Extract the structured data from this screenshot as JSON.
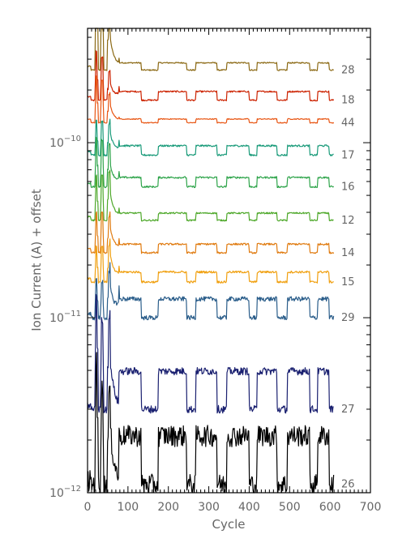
{
  "chart_data": {
    "type": "line",
    "title": "",
    "xlabel": "Cycle",
    "ylabel": "Ion Current (A) + offset",
    "xlim": [
      0,
      700
    ],
    "x_ticks": [
      "0",
      "100",
      "200",
      "300",
      "400",
      "500",
      "600",
      "700"
    ],
    "y_scale": "log",
    "ylim": [
      1e-12,
      4.5e-10
    ],
    "y_ticks": [
      {
        "value": 1e-12,
        "label": "10",
        "exp": "−12"
      },
      {
        "value": 1e-11,
        "label": "10",
        "exp": "−11"
      },
      {
        "value": 1e-10,
        "label": "10",
        "exp": "−10"
      }
    ],
    "grid": false,
    "plateaus": [
      [
        78,
        132
      ],
      [
        175,
        245
      ],
      [
        268,
        320
      ],
      [
        345,
        400
      ],
      [
        420,
        468
      ],
      [
        495,
        550
      ],
      [
        570,
        598
      ]
    ],
    "series": [
      {
        "name": "28",
        "color": "#8B6914",
        "baseline": 2.6e-10,
        "amp": 0.1,
        "spikes": [
          3.3,
          2.8,
          2.4
        ],
        "decay_peak": 1.6,
        "noise": 0.008
      },
      {
        "name": "18",
        "color": "#CC2200",
        "baseline": 1.75e-10,
        "amp": 0.12,
        "spikes": [
          1.9,
          1.75,
          1.45
        ],
        "decay_peak": 1.3,
        "noise": 0.01
      },
      {
        "name": "44",
        "color": "#E85512",
        "baseline": 1.3e-10,
        "amp": 0.05,
        "spikes": [
          1.85,
          1.75,
          1.45
        ],
        "decay_peak": 1.3,
        "noise": 0.006
      },
      {
        "name": "17",
        "color": "#1A9B7A",
        "baseline": 8.5e-11,
        "amp": 0.13,
        "spikes": [
          1.6,
          1.55,
          1.5
        ],
        "decay_peak": 1.4,
        "noise": 0.012
      },
      {
        "name": "16",
        "color": "#2EA44A",
        "baseline": 5.6e-11,
        "amp": 0.13,
        "spikes": [
          1.9,
          1.85,
          1.75
        ],
        "decay_peak": 1.4,
        "noise": 0.012
      },
      {
        "name": "12",
        "color": "#4EA82A",
        "baseline": 3.6e-11,
        "amp": 0.1,
        "spikes": [
          1.8,
          1.8,
          1.9
        ],
        "decay_peak": 1.5,
        "noise": 0.01
      },
      {
        "name": "14",
        "color": "#E07B10",
        "baseline": 2.35e-11,
        "amp": 0.12,
        "spikes": [
          1.7,
          1.7,
          1.6
        ],
        "decay_peak": 1.45,
        "noise": 0.012
      },
      {
        "name": "15",
        "color": "#F0A010",
        "baseline": 1.6e-11,
        "amp": 0.14,
        "spikes": [
          1.6,
          1.6,
          1.6
        ],
        "decay_peak": 1.5,
        "noise": 0.014
      },
      {
        "name": "29",
        "color": "#2A5D8A",
        "baseline": 1e-11,
        "amp": 0.28,
        "spikes": [
          1.7,
          1.6,
          1.8
        ],
        "decay_peak": 1.6,
        "noise": 0.03
      },
      {
        "name": "27",
        "color": "#1A2070",
        "baseline": 3e-12,
        "amp": 0.65,
        "spikes": [
          4.5,
          3.2,
          3.3
        ],
        "decay_peak": 2.0,
        "noise": 0.05
      },
      {
        "name": "26",
        "color": "#000000",
        "baseline": 1.12e-12,
        "amp": 0.9,
        "spikes": [
          5.0,
          3.5,
          3.2
        ],
        "decay_peak": 2.2,
        "noise": 0.14
      }
    ]
  }
}
